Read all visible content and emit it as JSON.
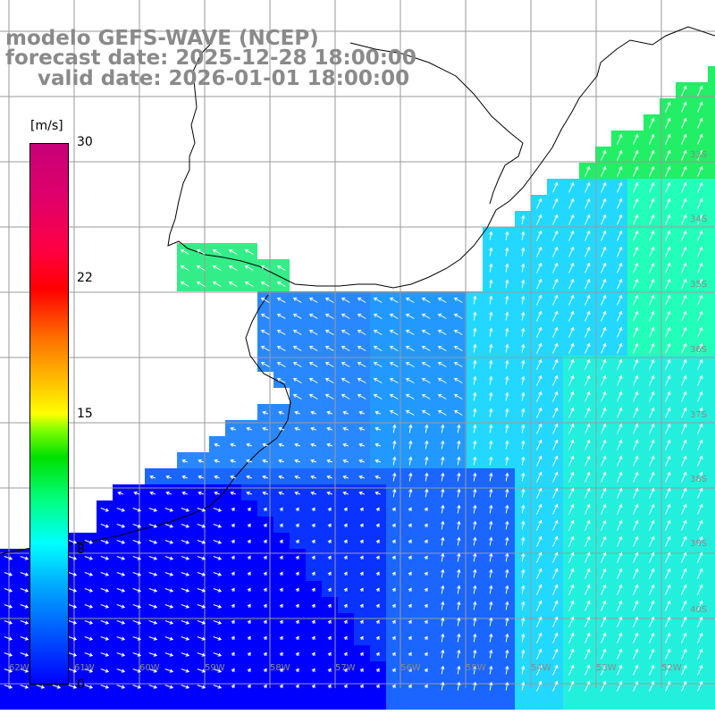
{
  "title": {
    "line1": "modelo GEFS-WAVE (NCEP)",
    "line2": "forecast date: 2025-12-28 18:00:00",
    "line3": "valid date: 2026-01-01 18:00:00"
  },
  "colorbar": {
    "unit": "[m/s]",
    "ticks": [
      "30",
      "22",
      "15",
      "8",
      "0"
    ],
    "tick_values": [
      30,
      22,
      15,
      8,
      0
    ],
    "range": [
      0,
      30
    ]
  },
  "map": {
    "lat_labels": [
      "33S",
      "34S",
      "35S",
      "36S",
      "37S",
      "38S",
      "39S",
      "40S"
    ],
    "lon_labels": [
      "62W",
      "61W",
      "60W",
      "59W",
      "58W",
      "57W",
      "56W",
      "55W",
      "54W",
      "53W",
      "52W"
    ],
    "land_color": "#ffffff",
    "grid_color": "#999999",
    "arrow_color": "#ffffff"
  }
}
